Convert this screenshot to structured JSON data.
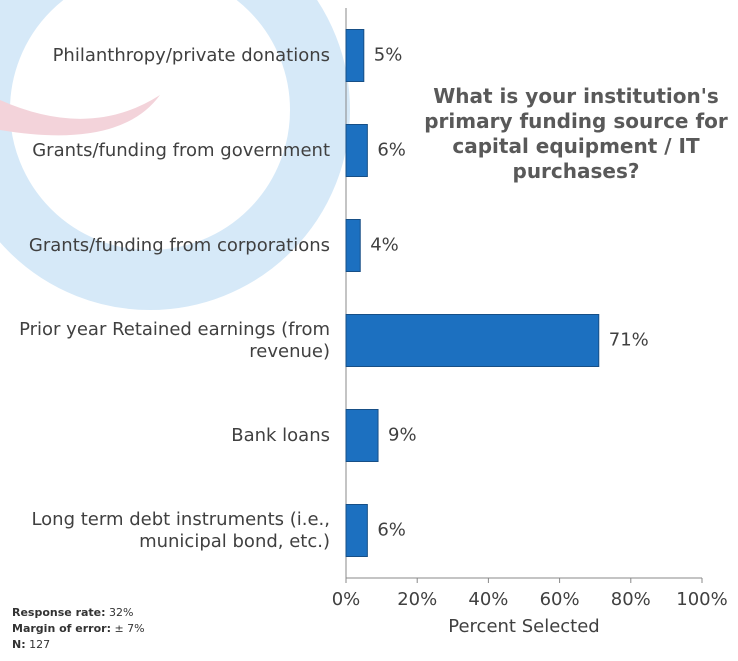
{
  "chart_data": {
    "type": "bar",
    "orientation": "horizontal",
    "title": "What is your institution's primary funding source for capital equipment / IT purchases?",
    "categories": [
      "Philanthropy/private donations",
      "Grants/funding from government",
      "Grants/funding from corporations",
      "Prior year Retained earnings (from revenue)",
      "Bank loans",
      "Long term debt instruments (i.e., municipal bond, etc.)"
    ],
    "values": [
      5,
      6,
      4,
      71,
      9,
      6
    ],
    "value_labels": [
      "5%",
      "6%",
      "4%",
      "71%",
      "9%",
      "6%"
    ],
    "color": "#1c70c0",
    "xlim": [
      0,
      100
    ],
    "xticks": [
      {
        "value": 0,
        "label": "0%"
      },
      {
        "value": 20,
        "label": "20%"
      },
      {
        "value": 40,
        "label": "40%"
      },
      {
        "value": 60,
        "label": "60%"
      },
      {
        "value": 80,
        "label": "80%"
      },
      {
        "value": 100,
        "label": "100%"
      }
    ],
    "xlabel": "Percent Selected",
    "notes": [
      {
        "label": "Response rate:",
        "value": "32%"
      },
      {
        "label": "Margin of error:",
        "value": "± 7%"
      },
      {
        "label": "N:",
        "value": "127"
      }
    ]
  }
}
